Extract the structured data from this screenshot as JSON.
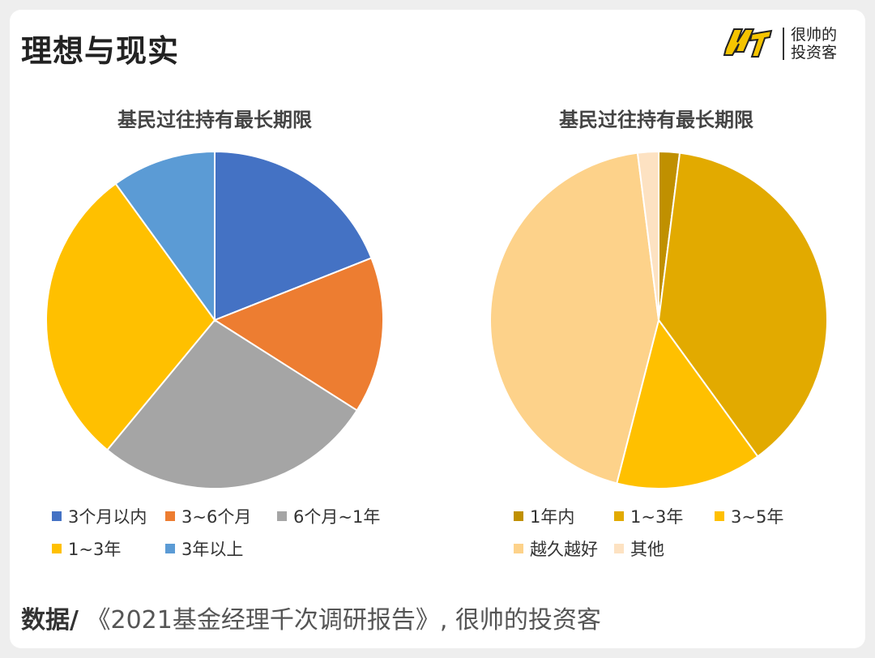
{
  "header": {
    "title": "理想与现实",
    "logo_text_line1": "很帅的",
    "logo_text_line2": "投资客"
  },
  "footer": {
    "label": "数据/",
    "source": " 《2021基金经理千次调研报告》, 很帅的投资客"
  },
  "chart_data": [
    {
      "type": "pie",
      "title": "基民过往持有最长期限",
      "categories": [
        "3个月以内",
        "3~6个月",
        "6个月~1年",
        "1~3年",
        "3年以上"
      ],
      "values": [
        19,
        15,
        27,
        29,
        10
      ],
      "colors": [
        "#4472c4",
        "#ed7d31",
        "#a5a5a5",
        "#ffc000",
        "#5b9bd5"
      ],
      "legend_position": "bottom"
    },
    {
      "type": "pie",
      "title": "基民过往持有最长期限",
      "categories": [
        "1年内",
        "1~3年",
        "3~5年",
        "越久越好",
        "其他"
      ],
      "values": [
        2,
        38,
        14,
        44,
        2
      ],
      "colors": [
        "#c09000",
        "#e2aa00",
        "#ffc000",
        "#fdd28a",
        "#fde2c2"
      ],
      "legend_position": "bottom"
    }
  ]
}
